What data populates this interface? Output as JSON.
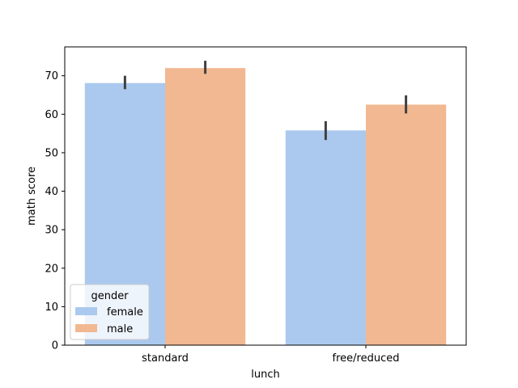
{
  "chart_data": {
    "type": "bar",
    "title": "",
    "xlabel": "lunch",
    "ylabel": "math score",
    "categories": [
      "standard",
      "free/reduced"
    ],
    "ylim": [
      0,
      77.5
    ],
    "yticks": [
      0,
      10,
      20,
      30,
      40,
      50,
      60,
      70
    ],
    "grid": false,
    "legend": {
      "title": "gender",
      "placement": "lower-left"
    },
    "series": [
      {
        "name": "female",
        "color": "#abc9ee",
        "values": [
          68.1,
          55.8
        ],
        "ci_low": [
          66.5,
          53.3
        ],
        "ci_high": [
          70.0,
          58.2
        ]
      },
      {
        "name": "male",
        "color": "#f1b891",
        "values": [
          72.0,
          62.5
        ],
        "ci_low": [
          70.5,
          60.2
        ],
        "ci_high": [
          73.9,
          64.9
        ]
      }
    ],
    "error_bar_color": "#404040"
  }
}
